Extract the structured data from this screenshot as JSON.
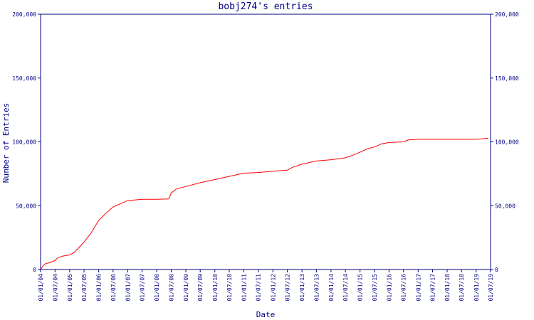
{
  "chart_data": {
    "type": "line",
    "title": "bobj274's entries",
    "xlabel": "Date",
    "ylabel": "Number of Entries",
    "ylim": [
      0,
      200000
    ],
    "y_ticks": [
      "0",
      "50,000",
      "100,000",
      "150,000",
      "200,000"
    ],
    "y_tick_values": [
      0,
      50000,
      100000,
      150000,
      200000
    ],
    "secondary_y_axis": true,
    "grid": false,
    "colors": {
      "line": "#ff0000",
      "axis": "#000080",
      "text": "#000080",
      "background": "#ffffff"
    },
    "x_ticks": [
      "01/01/04",
      "01/07/04",
      "01/01/05",
      "01/07/05",
      "01/01/06",
      "01/07/06",
      "01/01/07",
      "01/07/07",
      "01/01/08",
      "01/07/08",
      "01/01/09",
      "01/07/09",
      "01/01/10",
      "01/07/10",
      "01/01/11",
      "01/07/11",
      "01/01/12",
      "01/07/12",
      "01/01/13",
      "01/07/13",
      "01/01/14",
      "01/07/14",
      "01/01/15",
      "01/07/15",
      "01/01/16",
      "01/07/16",
      "01/01/17",
      "01/07/17",
      "01/01/18",
      "01/07/18",
      "01/01/19",
      "01/07/19"
    ],
    "series": [
      {
        "values": [
          [
            "2004-01-01",
            0
          ],
          [
            "2004-02-01",
            3000
          ],
          [
            "2004-03-01",
            4500
          ],
          [
            "2004-05-01",
            5500
          ],
          [
            "2004-07-01",
            7000
          ],
          [
            "2004-08-01",
            9000
          ],
          [
            "2004-10-01",
            10500
          ],
          [
            "2005-01-01",
            11500
          ],
          [
            "2005-03-01",
            13500
          ],
          [
            "2005-05-01",
            17500
          ],
          [
            "2005-07-01",
            21500
          ],
          [
            "2005-10-01",
            29000
          ],
          [
            "2006-01-01",
            38500
          ],
          [
            "2006-04-01",
            44000
          ],
          [
            "2006-07-01",
            49000
          ],
          [
            "2006-10-01",
            51500
          ],
          [
            "2007-01-01",
            54000
          ],
          [
            "2007-07-01",
            55000
          ],
          [
            "2008-01-01",
            55000
          ],
          [
            "2008-06-01",
            55300
          ],
          [
            "2008-07-01",
            60000
          ],
          [
            "2008-09-01",
            63000
          ],
          [
            "2009-01-01",
            65000
          ],
          [
            "2009-07-01",
            68000
          ],
          [
            "2010-01-01",
            70500
          ],
          [
            "2010-07-01",
            73000
          ],
          [
            "2011-01-01",
            75500
          ],
          [
            "2011-07-01",
            76000
          ],
          [
            "2012-01-01",
            77000
          ],
          [
            "2012-07-01",
            77800
          ],
          [
            "2012-09-01",
            80000
          ],
          [
            "2013-01-01",
            82500
          ],
          [
            "2013-07-01",
            85000
          ],
          [
            "2014-01-01",
            86000
          ],
          [
            "2014-07-01",
            87500
          ],
          [
            "2014-10-01",
            89500
          ],
          [
            "2015-01-01",
            92000
          ],
          [
            "2015-04-01",
            94500
          ],
          [
            "2015-07-01",
            96000
          ],
          [
            "2015-10-01",
            98500
          ],
          [
            "2016-01-01",
            99500
          ],
          [
            "2016-07-01",
            100000
          ],
          [
            "2016-09-01",
            101500
          ],
          [
            "2017-01-01",
            102000
          ],
          [
            "2018-01-01",
            102000
          ],
          [
            "2019-01-01",
            102000
          ],
          [
            "2019-04-01",
            102500
          ],
          [
            "2019-06-01",
            103000
          ]
        ]
      }
    ]
  }
}
